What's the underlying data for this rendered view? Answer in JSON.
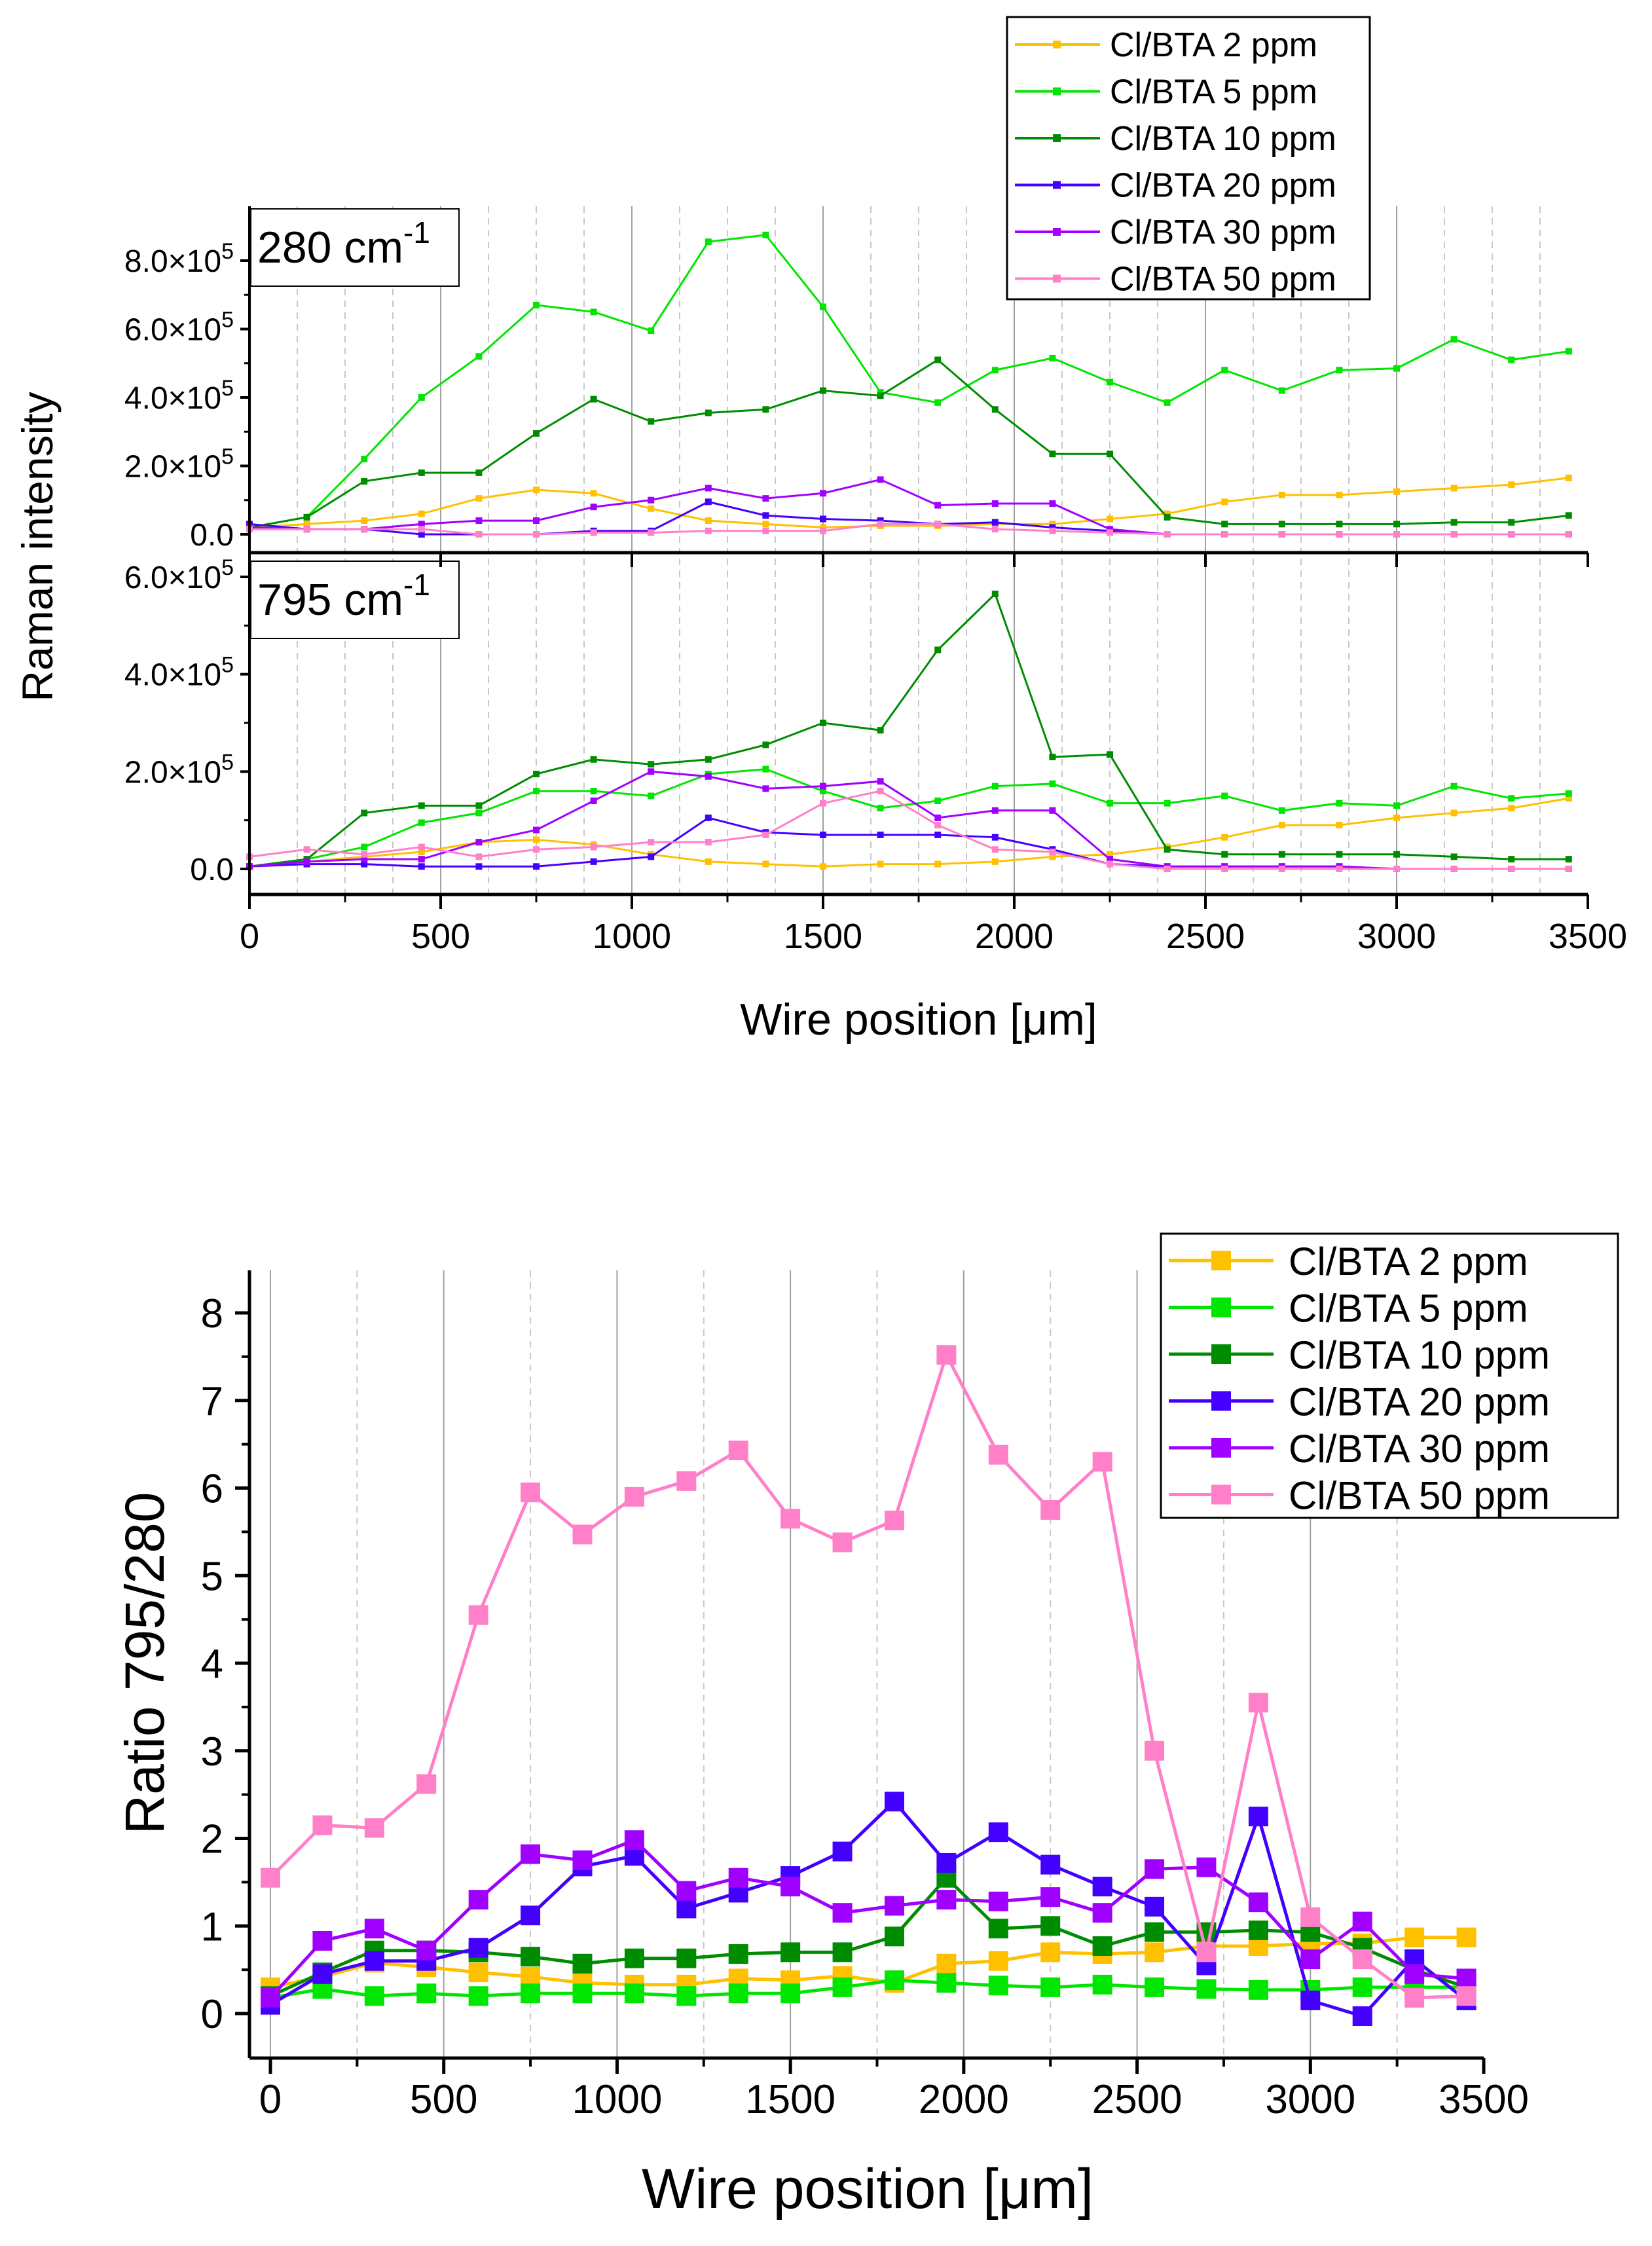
{
  "chart_data": [
    {
      "type": "line",
      "panel": "top",
      "label": "280 cm",
      "label_sup": "-1",
      "xlim": [
        0,
        3500
      ],
      "ylim": [
        0,
        8.8
      ],
      "y_unit_exponent": 5,
      "yticks": [
        {
          "v": 0,
          "m": "0.0",
          "e": ""
        },
        {
          "v": 2,
          "m": "2.0×10",
          "e": "5"
        },
        {
          "v": 4,
          "m": "4.0×10",
          "e": "5"
        },
        {
          "v": 6,
          "m": "6.0×10",
          "e": "5"
        },
        {
          "v": 8,
          "m": "8.0×10",
          "e": "5"
        }
      ],
      "x": [
        0,
        150,
        300,
        450,
        600,
        750,
        900,
        1050,
        1200,
        1350,
        1500,
        1650,
        1800,
        1950,
        2100,
        2250,
        2400,
        2550,
        2700,
        2850,
        3000,
        3150,
        3300,
        3450
      ],
      "series": [
        {
          "name": "Cl/BTA 2 ppm",
          "color": "#FFC000",
          "values": [
            0.2,
            0.3,
            0.4,
            0.6,
            1.05,
            1.3,
            1.2,
            0.75,
            0.4,
            0.3,
            0.2,
            0.25,
            0.25,
            0.3,
            0.3,
            0.45,
            0.6,
            0.95,
            1.15,
            1.15,
            1.25,
            1.35,
            1.45,
            1.65
          ]
        },
        {
          "name": "Cl/BTA 5 ppm",
          "color": "#00E600",
          "values": [
            0.2,
            0.5,
            2.2,
            4.0,
            5.2,
            6.7,
            6.5,
            5.95,
            8.55,
            8.75,
            6.65,
            4.15,
            3.85,
            4.8,
            5.15,
            4.45,
            3.85,
            4.8,
            4.2,
            4.8,
            4.85,
            5.7,
            5.1,
            5.35
          ]
        },
        {
          "name": "Cl/BTA 10 ppm",
          "color": "#008C00",
          "values": [
            0.2,
            0.5,
            1.55,
            1.8,
            1.8,
            2.95,
            3.95,
            3.3,
            3.55,
            3.65,
            4.2,
            4.05,
            5.1,
            3.65,
            2.35,
            2.35,
            0.5,
            0.3,
            0.3,
            0.3,
            0.3,
            0.35,
            0.35,
            0.55
          ]
        },
        {
          "name": "Cl/BTA 20 ppm",
          "color": "#4400FF",
          "values": [
            0.3,
            0.15,
            0.15,
            0.0,
            0.0,
            0.0,
            0.1,
            0.1,
            0.95,
            0.55,
            0.45,
            0.4,
            0.3,
            0.35,
            0.2,
            0.1,
            0,
            0,
            0,
            0,
            0,
            0,
            0,
            0
          ]
        },
        {
          "name": "Cl/BTA 30 ppm",
          "color": "#A000FF",
          "values": [
            0.2,
            0.15,
            0.15,
            0.3,
            0.4,
            0.4,
            0.8,
            1.0,
            1.35,
            1.05,
            1.2,
            1.6,
            0.85,
            0.9,
            0.9,
            0.15,
            0,
            0,
            0,
            0,
            0,
            0,
            0,
            0
          ]
        },
        {
          "name": "Cl/BTA 50 ppm",
          "color": "#FF80C8",
          "values": [
            0.15,
            0.15,
            0.15,
            0.15,
            0,
            0,
            0.05,
            0.05,
            0.1,
            0.1,
            0.1,
            0.3,
            0.3,
            0.15,
            0.1,
            0.05,
            0,
            0,
            0,
            0,
            0,
            0,
            0,
            0
          ]
        }
      ]
    },
    {
      "type": "line",
      "panel": "middle",
      "label": "795 cm",
      "label_sup": "-1",
      "xlim": [
        0,
        3500
      ],
      "ylim": [
        -0.1,
        6.0
      ],
      "y_unit_exponent": 5,
      "yticks": [
        {
          "v": 0,
          "m": "0.0",
          "e": ""
        },
        {
          "v": 2,
          "m": "2.0×10",
          "e": "5"
        },
        {
          "v": 4,
          "m": "4.0×10",
          "e": "5"
        },
        {
          "v": 6,
          "m": "6.0×10",
          "e": "5"
        }
      ],
      "xticks": [
        "0",
        "500",
        "1000",
        "1500",
        "2000",
        "2500",
        "3000",
        "3500"
      ],
      "xlabel": "Wire position [μm]",
      "ylabel": "Raman intensity",
      "x": [
        0,
        150,
        300,
        450,
        600,
        750,
        900,
        1050,
        1200,
        1350,
        1500,
        1650,
        1800,
        1950,
        2100,
        2250,
        2400,
        2550,
        2700,
        2850,
        3000,
        3150,
        3300,
        3450
      ],
      "series": [
        {
          "name": "Cl/BTA 2 ppm",
          "color": "#FFC000",
          "values": [
            0.05,
            0.15,
            0.25,
            0.35,
            0.55,
            0.6,
            0.5,
            0.3,
            0.15,
            0.1,
            0.05,
            0.1,
            0.1,
            0.15,
            0.25,
            0.3,
            0.45,
            0.65,
            0.9,
            0.9,
            1.05,
            1.15,
            1.25,
            1.45
          ]
        },
        {
          "name": "Cl/BTA 5 ppm",
          "color": "#00E600",
          "values": [
            0.05,
            0.2,
            0.45,
            0.95,
            1.15,
            1.6,
            1.6,
            1.5,
            1.95,
            2.05,
            1.6,
            1.25,
            1.4,
            1.7,
            1.75,
            1.35,
            1.35,
            1.5,
            1.2,
            1.35,
            1.3,
            1.7,
            1.45,
            1.55
          ]
        },
        {
          "name": "Cl/BTA 10 ppm",
          "color": "#008C00",
          "values": [
            0.05,
            0.2,
            1.15,
            1.3,
            1.3,
            1.95,
            2.25,
            2.15,
            2.25,
            2.55,
            3.0,
            2.85,
            4.5,
            5.65,
            2.3,
            2.35,
            0.4,
            0.3,
            0.3,
            0.3,
            0.3,
            0.25,
            0.2,
            0.2
          ]
        },
        {
          "name": "Cl/BTA 20 ppm",
          "color": "#4400FF",
          "values": [
            0.05,
            0.1,
            0.1,
            0.05,
            0.05,
            0.05,
            0.15,
            0.25,
            1.05,
            0.75,
            0.7,
            0.7,
            0.7,
            0.65,
            0.4,
            0.1,
            0.05,
            0.05,
            0.05,
            0.05,
            0,
            0,
            0,
            0
          ]
        },
        {
          "name": "Cl/BTA 30 ppm",
          "color": "#A000FF",
          "values": [
            0.05,
            0.15,
            0.2,
            0.2,
            0.55,
            0.8,
            1.4,
            2.0,
            1.9,
            1.65,
            1.7,
            1.8,
            1.05,
            1.2,
            1.2,
            0.2,
            0.05,
            0.05,
            0.05,
            0.05,
            0,
            0,
            0,
            0
          ]
        },
        {
          "name": "Cl/BTA 50 ppm",
          "color": "#FF80C8",
          "values": [
            0.25,
            0.4,
            0.3,
            0.45,
            0.25,
            0.4,
            0.45,
            0.55,
            0.55,
            0.7,
            1.35,
            1.6,
            0.9,
            0.4,
            0.35,
            0.1,
            0,
            0,
            0,
            0,
            0,
            0,
            0,
            0
          ]
        }
      ]
    },
    {
      "type": "line",
      "panel": "bottom",
      "xlim": [
        -80,
        3500
      ],
      "ylim": [
        -0.3,
        8.5
      ],
      "yticks": [
        "0",
        "1",
        "2",
        "3",
        "4",
        "5",
        "6",
        "7",
        "8"
      ],
      "xticks": [
        "0",
        "500",
        "1000",
        "1500",
        "2000",
        "2500",
        "3000",
        "3500"
      ],
      "xlabel": "Wire position [μm]",
      "ylabel": "Ratio 795/280",
      "x": [
        0,
        150,
        300,
        450,
        600,
        750,
        900,
        1050,
        1200,
        1350,
        1500,
        1650,
        1800,
        1950,
        2100,
        2250,
        2400,
        2550,
        2700,
        2850,
        3000,
        3150,
        3300,
        3450
      ],
      "series": [
        {
          "name": "Cl/BTA 2 ppm",
          "color": "#FFC000",
          "values": [
            0.3,
            0.42,
            0.58,
            0.53,
            0.47,
            0.42,
            0.35,
            0.33,
            0.33,
            0.4,
            0.38,
            0.43,
            0.35,
            0.57,
            0.6,
            0.7,
            0.68,
            0.7,
            0.77,
            0.77,
            0.8,
            0.8,
            0.87,
            0.87
          ]
        },
        {
          "name": "Cl/BTA 5 ppm",
          "color": "#00E600",
          "values": [
            0.18,
            0.28,
            0.2,
            0.23,
            0.2,
            0.23,
            0.23,
            0.23,
            0.2,
            0.23,
            0.23,
            0.3,
            0.38,
            0.35,
            0.32,
            0.3,
            0.33,
            0.3,
            0.28,
            0.27,
            0.27,
            0.3,
            0.3,
            0.3
          ]
        },
        {
          "name": "Cl/BTA 10 ppm",
          "color": "#008C00",
          "values": [
            0.2,
            0.47,
            0.72,
            0.72,
            0.7,
            0.65,
            0.57,
            0.63,
            0.63,
            0.68,
            0.7,
            0.7,
            0.88,
            1.55,
            0.97,
            1.0,
            0.77,
            0.93,
            0.93,
            0.95,
            0.93,
            0.75,
            0.5,
            0.3
          ]
        },
        {
          "name": "Cl/BTA 20 ppm",
          "color": "#4400FF",
          "values": [
            0.1,
            0.45,
            0.6,
            0.6,
            0.75,
            1.12,
            1.68,
            1.8,
            1.2,
            1.38,
            1.57,
            1.85,
            2.42,
            1.72,
            2.07,
            1.7,
            1.45,
            1.22,
            0.55,
            2.25,
            0.15,
            -0.03,
            0.62,
            0.15
          ]
        },
        {
          "name": "Cl/BTA 30 ppm",
          "color": "#A000FF",
          "values": [
            0.18,
            0.83,
            0.97,
            0.72,
            1.3,
            1.82,
            1.75,
            1.98,
            1.4,
            1.55,
            1.45,
            1.15,
            1.23,
            1.3,
            1.28,
            1.33,
            1.15,
            1.65,
            1.67,
            1.27,
            0.62,
            1.05,
            0.45,
            0.4
          ]
        },
        {
          "name": "Cl/BTA 50 ppm",
          "color": "#FF80C8",
          "values": [
            1.55,
            2.15,
            2.12,
            2.62,
            4.55,
            5.95,
            5.47,
            5.9,
            6.08,
            6.43,
            5.65,
            5.38,
            5.63,
            7.52,
            6.38,
            5.75,
            6.3,
            3.0,
            0.7,
            3.55,
            1.1,
            0.62,
            0.18,
            0.2
          ]
        }
      ]
    }
  ]
}
